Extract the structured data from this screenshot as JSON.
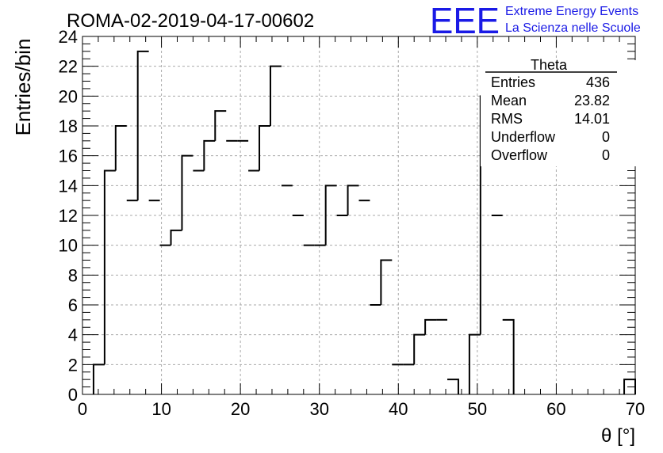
{
  "chart_data": {
    "type": "bar",
    "title": "ROMA-02-2019-04-17-00602",
    "xlabel": "θ [°]",
    "ylabel": "Entries/bin",
    "xlim": [
      0,
      70
    ],
    "ylim": [
      0,
      24
    ],
    "bin_width": 1.4,
    "x_start": 1.4,
    "x_ticks": [
      "0",
      "10",
      "20",
      "30",
      "40",
      "50",
      "60",
      "70"
    ],
    "y_ticks": [
      "0",
      "2",
      "4",
      "6",
      "8",
      "10",
      "12",
      "14",
      "16",
      "18",
      "20",
      "22",
      "24"
    ],
    "grid": true,
    "values": [
      2,
      15,
      18,
      13,
      23,
      13,
      10,
      11,
      16,
      15,
      17,
      19,
      17,
      17,
      15,
      18,
      22,
      14,
      12,
      10,
      10,
      14,
      12,
      14,
      13,
      6,
      9,
      2,
      2,
      4,
      5,
      5,
      1,
      0,
      4,
      20,
      12,
      5,
      0,
      0,
      0,
      0,
      0,
      0,
      0,
      0,
      0,
      0,
      1
    ],
    "stats_box": {
      "title": "Theta",
      "rows": [
        {
          "label": "Entries",
          "value": "436"
        },
        {
          "label": "Mean",
          "value": "23.82"
        },
        {
          "label": "RMS",
          "value": "14.01"
        },
        {
          "label": "Underflow",
          "value": "0"
        },
        {
          "label": "Overflow",
          "value": "0"
        }
      ]
    }
  },
  "logo": {
    "mark": "EEE",
    "line1": "Extreme Energy Events",
    "line2": "La Scienza nelle Scuole",
    "color": "#1a1ae6"
  }
}
